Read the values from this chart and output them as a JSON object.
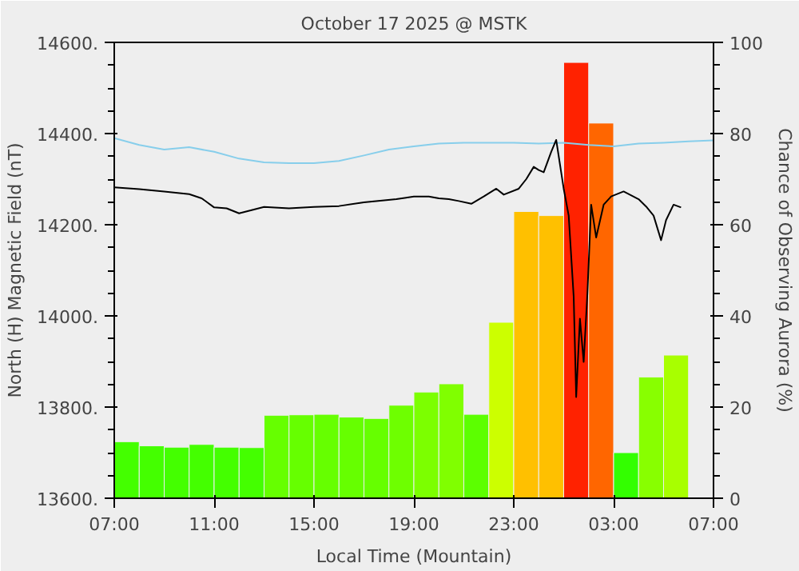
{
  "chart_data": {
    "type": "bar",
    "title": "October 17 2025 @ MSTK",
    "xlabel": "Local Time (Mountain)",
    "ylabel": "North (H) Magnetic Field (nT)",
    "y2label": "Chance of Observing Aurora (%)",
    "xlim": [
      "2025-10-17T07:00",
      "2025-10-18T07:00"
    ],
    "xticks": [
      {
        "value": "2025-10-17T07:00",
        "label": "07:00"
      },
      {
        "value": "2025-10-17T11:00",
        "label": "11:00"
      },
      {
        "value": "2025-10-17T15:00",
        "label": "15:00"
      },
      {
        "value": "2025-10-17T19:00",
        "label": "19:00"
      },
      {
        "value": "2025-10-17T23:00",
        "label": "23:00"
      },
      {
        "value": "2025-10-18T03:00",
        "label": "03:00"
      },
      {
        "value": "2025-10-18T07:00",
        "label": "07:00"
      }
    ],
    "ylim": [
      13600,
      14600
    ],
    "yticks": [
      {
        "value": 13600,
        "label": "13600."
      },
      {
        "value": 13800,
        "label": "13800."
      },
      {
        "value": 14000,
        "label": "14000."
      },
      {
        "value": 14200,
        "label": "14200."
      },
      {
        "value": 14400,
        "label": "14400."
      },
      {
        "value": 14600,
        "label": "14600."
      }
    ],
    "y2lim": [
      0,
      100
    ],
    "y2ticks": [
      0,
      20,
      40,
      60,
      80,
      100
    ],
    "grid": false,
    "series": [
      {
        "axis": "y2",
        "x": [
          "2025-10-17T07:30",
          "2025-10-17T08:30",
          "2025-10-17T09:30",
          "2025-10-17T10:30",
          "2025-10-17T11:30",
          "2025-10-17T12:30",
          "2025-10-17T13:30",
          "2025-10-17T14:30",
          "2025-10-17T15:30",
          "2025-10-17T16:30",
          "2025-10-17T17:30",
          "2025-10-17T18:30",
          "2025-10-17T19:30",
          "2025-10-17T20:30",
          "2025-10-17T21:30",
          "2025-10-17T22:30",
          "2025-10-17T23:30",
          "2025-10-18T00:30",
          "2025-10-18T01:30",
          "2025-10-18T02:30",
          "2025-10-18T03:30",
          "2025-10-18T04:30",
          "2025-10-18T05:30"
        ],
        "values": [
          12.4,
          11.5,
          11.2,
          11.8,
          11.2,
          11.1,
          18.2,
          18.3,
          18.4,
          17.8,
          17.5,
          20.4,
          23.3,
          25.1,
          18.4,
          38.6,
          62.9,
          62.0,
          95.6,
          82.3,
          10.0,
          26.6,
          31.4
        ],
        "colors": [
          "#44ff00",
          "#44ff00",
          "#44ff00",
          "#44ff00",
          "#44ff00",
          "#44ff00",
          "#66ff00",
          "#66ff00",
          "#66ff00",
          "#66ff00",
          "#66ff00",
          "#6eff00",
          "#7cff00",
          "#80ff00",
          "#5cff00",
          "#ccff00",
          "#ffc000",
          "#ffc000",
          "#ff2200",
          "#ff6600",
          "#33ff00",
          "#88ff00",
          "#a8ff00"
        ]
      },
      {
        "type": "line",
        "color": "#87ceeb",
        "x": [
          "2025-10-17T07:00",
          "2025-10-17T08:00",
          "2025-10-17T09:00",
          "2025-10-17T10:00",
          "2025-10-17T11:00",
          "2025-10-17T12:00",
          "2025-10-17T13:00",
          "2025-10-17T14:00",
          "2025-10-17T15:00",
          "2025-10-17T16:00",
          "2025-10-17T17:00",
          "2025-10-17T18:00",
          "2025-10-17T19:00",
          "2025-10-17T20:00",
          "2025-10-17T21:00",
          "2025-10-17T22:00",
          "2025-10-17T23:00",
          "2025-10-18T00:00",
          "2025-10-18T01:00",
          "2025-10-18T02:00",
          "2025-10-18T03:00",
          "2025-10-18T04:00",
          "2025-10-18T05:00",
          "2025-10-18T06:00",
          "2025-10-18T07:00"
        ],
        "values": [
          14390,
          14375,
          14365,
          14370,
          14360,
          14345,
          14337,
          14335,
          14335,
          14340,
          14352,
          14365,
          14372,
          14378,
          14380,
          14380,
          14380,
          14378,
          14380,
          14375,
          14372,
          14378,
          14380,
          14383,
          14385
        ]
      },
      {
        "type": "line",
        "color": "#000000",
        "x": [
          "2025-10-17T07:00",
          "2025-10-17T08:00",
          "2025-10-17T09:00",
          "2025-10-17T10:00",
          "2025-10-17T10:30",
          "2025-10-17T11:00",
          "2025-10-17T11:30",
          "2025-10-17T12:00",
          "2025-10-17T12:30",
          "2025-10-17T13:00",
          "2025-10-17T14:00",
          "2025-10-17T15:00",
          "2025-10-17T16:00",
          "2025-10-17T17:00",
          "2025-10-17T18:18",
          "2025-10-17T19:00",
          "2025-10-17T19:36",
          "2025-10-17T20:00",
          "2025-10-17T20:24",
          "2025-10-17T20:48",
          "2025-10-17T21:18",
          "2025-10-17T21:48",
          "2025-10-17T22:18",
          "2025-10-17T22:36",
          "2025-10-17T23:12",
          "2025-10-17T23:30",
          "2025-10-17T23:48",
          "2025-10-18T00:00",
          "2025-10-18T00:12",
          "2025-10-18T00:30",
          "2025-10-18T00:42",
          "2025-10-18T01:00",
          "2025-10-18T01:12",
          "2025-10-18T01:24",
          "2025-10-18T01:30",
          "2025-10-18T01:39",
          "2025-10-18T01:48",
          "2025-10-18T01:57",
          "2025-10-18T02:06",
          "2025-10-18T02:18",
          "2025-10-18T02:36",
          "2025-10-18T02:54",
          "2025-10-18T03:24",
          "2025-10-18T04:00",
          "2025-10-18T04:18",
          "2025-10-18T04:36",
          "2025-10-18T04:54",
          "2025-10-18T05:06",
          "2025-10-18T05:24",
          "2025-10-18T05:42"
        ],
        "values": [
          14282,
          14278,
          14273,
          14267,
          14258,
          14238,
          14236,
          14225,
          14232,
          14239,
          14236,
          14239,
          14241,
          14249,
          14256,
          14262,
          14262,
          14258,
          14256,
          14252,
          14246,
          14262,
          14279,
          14266,
          14279,
          14300,
          14327,
          14320,
          14315,
          14360,
          14386,
          14279,
          14220,
          14042,
          13822,
          13994,
          13899,
          14050,
          14244,
          14172,
          14244,
          14262,
          14273,
          14256,
          14240,
          14220,
          14166,
          14210,
          14244,
          14238
        ]
      }
    ]
  }
}
